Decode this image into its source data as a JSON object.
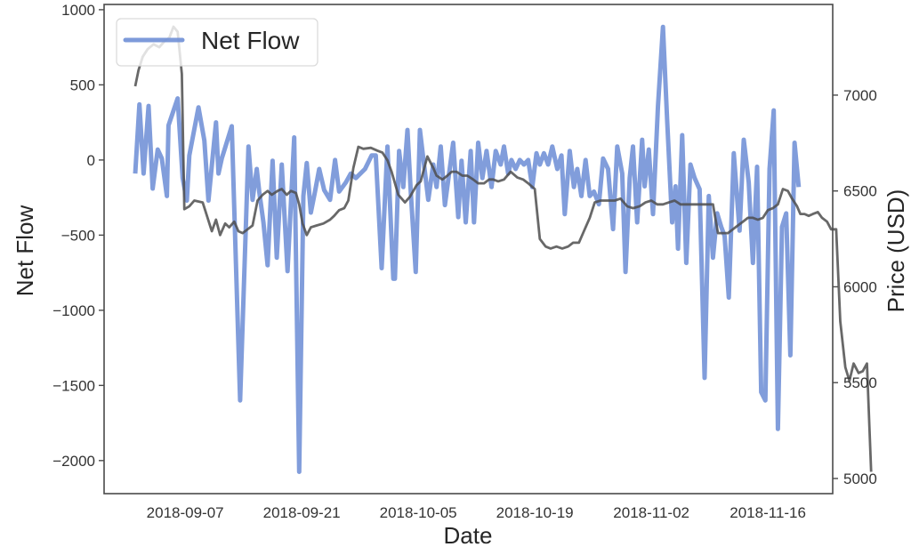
{
  "chart_data": {
    "type": "line",
    "title": "",
    "xlabel": "Date",
    "ylabel": "Net Flow",
    "ylabel_right": "Price (USD)",
    "x_tick_labels": [
      "2018-09-07",
      "2018-09-21",
      "2018-10-05",
      "2018-10-19",
      "2018-11-02",
      "2018-11-16"
    ],
    "y_ticks_left": [
      1000,
      500,
      0,
      -500,
      -1000,
      -1500,
      -2000
    ],
    "y_ticks_right": [
      7000,
      6500,
      6000,
      5500,
      5000
    ],
    "ylim_left": [
      -2220,
      1035
    ],
    "ylim_right": [
      4921,
      7473
    ],
    "grid": false,
    "legend": {
      "position": "upper left",
      "entries": [
        "Net Flow"
      ]
    },
    "series": [
      {
        "name": "Net Flow",
        "axis": "left",
        "color": "#6f8fd6",
        "x_day_offset": [
          0,
          0.5,
          1,
          1.6,
          2.1,
          2.7,
          3.2,
          3.8,
          4.0,
          5.1,
          5.7,
          6.2,
          6.5,
          7.6,
          8.3,
          8.8,
          9.7,
          10.0,
          10.4,
          11.6,
          12.6,
          13.6,
          14.1,
          14.6,
          14.9,
          15.4,
          15.9,
          16.5,
          17.0,
          17.6,
          18.3,
          19.1,
          19.7,
          20.2,
          20.6,
          21.1,
          21.6,
          22.1,
          22.7,
          23.4,
          24.0,
          24.5,
          25.3,
          25.9,
          26.5,
          27.6,
          28.4,
          28.9,
          29.6,
          30.3,
          31.0,
          31.2,
          31.7,
          32.2,
          32.7,
          33.1,
          33.7,
          34.2,
          34.6,
          35.2,
          35.8,
          36.2,
          36.7,
          37.2,
          38.2,
          38.8,
          39.2,
          39.7,
          40.3,
          40.7,
          41.2,
          41.7,
          42.2,
          42.8,
          43.3,
          43.9,
          44.3,
          44.8,
          45.2,
          45.7,
          46.2,
          46.7,
          47.2,
          47.7,
          48.2,
          48.6,
          49.1,
          49.6,
          50.1,
          50.7,
          51.2,
          51.6,
          52.2,
          52.7,
          53.1,
          53.6,
          54.1,
          54.6,
          55.1,
          55.7,
          56.2,
          56.8,
          57.4,
          57.9,
          58.5,
          58.9,
          59.4,
          59.8,
          60.3,
          60.9,
          61.2,
          61.7,
          62.2,
          62.8,
          63.4,
          63.9,
          64.5,
          64.9,
          65.2,
          65.7,
          66.2,
          66.7,
          67.2,
          67.8,
          68.4,
          68.9,
          69.4,
          69.9,
          70.4,
          70.8,
          71.3,
          71.9,
          72.6,
          73.1,
          73.7,
          74.2,
          74.7,
          75.2,
          75.7,
          76.2,
          76.7,
          77.2,
          77.7,
          78.2,
          78.7,
          79.2,
          79.7
        ],
        "values": [
          -90,
          370,
          -90,
          360,
          -190,
          70,
          10,
          -240,
          230,
          410,
          -120,
          -270,
          30,
          350,
          130,
          -270,
          250,
          -90,
          10,
          225,
          -1600,
          90,
          -265,
          -60,
          -210,
          -415,
          -700,
          -5,
          -650,
          -30,
          -740,
          150,
          -2075,
          -240,
          -20,
          -350,
          -210,
          -60,
          -200,
          -265,
          0,
          -210,
          -150,
          -90,
          -120,
          -60,
          30,
          30,
          -720,
          90,
          -790,
          -790,
          60,
          -180,
          200,
          -210,
          -745,
          200,
          10,
          -265,
          -30,
          -180,
          90,
          -300,
          115,
          -380,
          -5,
          -415,
          60,
          -415,
          115,
          -120,
          60,
          -180,
          60,
          -30,
          90,
          -90,
          0,
          -60,
          0,
          -30,
          0,
          -180,
          45,
          -30,
          45,
          -30,
          90,
          -60,
          30,
          -360,
          60,
          -180,
          -60,
          -240,
          0,
          -240,
          -210,
          -295,
          10,
          -60,
          -460,
          90,
          -90,
          -745,
          -120,
          90,
          -415,
          135,
          -175,
          70,
          -360,
          360,
          885,
          265,
          -415,
          -175,
          -590,
          165,
          -685,
          -30,
          -120,
          -195,
          -1450,
          -240,
          -650,
          -355,
          -445,
          -505,
          -915,
          45,
          -470,
          135,
          -150,
          -685,
          -45,
          -1545,
          -1600,
          -60,
          330,
          -1790,
          -445,
          -355,
          -1300,
          115,
          -180,
          -5,
          -770,
          -970
        ]
      },
      {
        "name": "Price (USD)",
        "axis": "right",
        "color": "#4d4d4d",
        "x_day_offset": [
          0,
          0.4,
          0.9,
          1.5,
          2.2,
          2.9,
          3.5,
          4.1,
          4.6,
          5.1,
          5.6,
          5.9,
          6.5,
          7.1,
          8.1,
          8.4,
          9.2,
          9.7,
          10.2,
          10.8,
          11.3,
          11.9,
          12.4,
          12.9,
          13.5,
          14.1,
          14.7,
          15.3,
          15.9,
          16.4,
          17.1,
          17.6,
          18.2,
          18.7,
          19.3,
          19.7,
          20.1,
          20.6,
          21.1,
          21.8,
          22.6,
          23.4,
          23.9,
          24.5,
          25.1,
          25.6,
          26.2,
          26.8,
          27.4,
          28.3,
          29.1,
          29.7,
          30.3,
          30.8,
          31.6,
          32.4,
          33.0,
          33.8,
          34.3,
          35.1,
          35.8,
          36.2,
          36.9,
          37.5,
          38.0,
          38.6,
          39.3,
          39.9,
          40.6,
          41.2,
          41.9,
          42.5,
          43.0,
          43.6,
          44.3,
          45.1,
          45.9,
          46.6,
          47.2,
          48.0,
          48.6,
          49.3,
          49.9,
          50.6,
          51.3,
          52.0,
          52.6,
          53.3,
          53.9,
          54.6,
          55.2,
          55.9,
          56.5,
          57.1,
          57.6,
          58.3,
          59.1,
          59.8,
          60.6,
          61.3,
          62.0,
          62.7,
          63.4,
          64.1,
          64.8,
          65.5,
          66.2,
          66.9,
          67.5,
          68.1,
          68.8,
          69.4,
          70.0,
          70.6,
          71.2,
          71.8,
          72.4,
          73.0,
          73.6,
          74.2,
          74.8,
          75.4,
          76.0,
          76.6,
          77.2,
          77.8,
          78.4,
          78.9,
          79.5
        ],
        "values": [
          7046,
          7130,
          7200,
          7240,
          7265,
          7250,
          7280,
          7300,
          7357,
          7330,
          7110,
          6405,
          6420,
          6450,
          6440,
          6400,
          6290,
          6350,
          6270,
          6330,
          6310,
          6340,
          6290,
          6280,
          6300,
          6320,
          6450,
          6480,
          6500,
          6480,
          6500,
          6510,
          6480,
          6500,
          6490,
          6430,
          6330,
          6270,
          6310,
          6320,
          6330,
          6350,
          6370,
          6400,
          6410,
          6450,
          6620,
          6730,
          6720,
          6725,
          6710,
          6700,
          6660,
          6600,
          6480,
          6440,
          6470,
          6530,
          6550,
          6680,
          6620,
          6580,
          6560,
          6580,
          6600,
          6600,
          6580,
          6580,
          6560,
          6540,
          6540,
          6560,
          6560,
          6550,
          6560,
          6600,
          6570,
          6560,
          6540,
          6510,
          6250,
          6210,
          6200,
          6210,
          6200,
          6210,
          6230,
          6230,
          6290,
          6360,
          6440,
          6450,
          6450,
          6450,
          6450,
          6460,
          6420,
          6410,
          6420,
          6440,
          6450,
          6430,
          6430,
          6440,
          6450,
          6430,
          6430,
          6430,
          6430,
          6430,
          6430,
          6430,
          6280,
          6280,
          6280,
          6300,
          6320,
          6340,
          6360,
          6360,
          6350,
          6360,
          6400,
          6410,
          6430,
          6510,
          6500,
          6460,
          6420
        ]
      }
    ],
    "price_tail": {
      "x_day_offset": [
        79.9,
        80.4,
        80.9,
        81.4,
        82.0,
        82.5,
        83.1,
        83.6,
        84.2,
        84.7,
        85.3,
        85.8,
        86.3,
        86.9,
        87.4,
        87.9,
        88.4
      ],
      "values": [
        6380,
        6380,
        6370,
        6380,
        6390,
        6360,
        6340,
        6300,
        6300,
        5820,
        5580,
        5510,
        5600,
        5550,
        5560,
        5600,
        5035
      ]
    }
  }
}
